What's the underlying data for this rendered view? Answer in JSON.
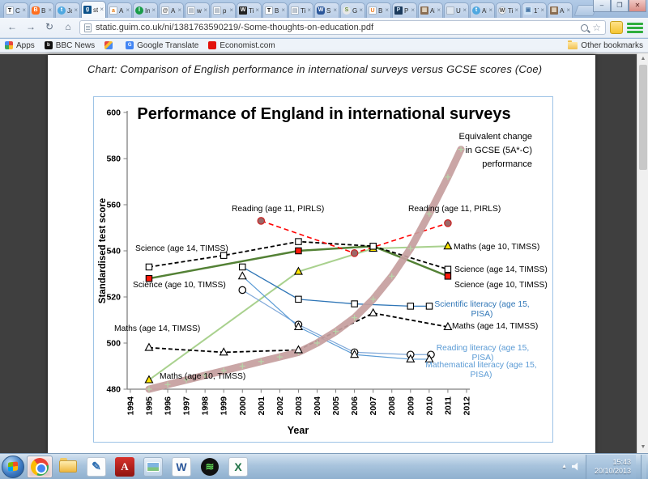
{
  "browser": {
    "tabs": [
      {
        "label": "C",
        "fav": {
          "glyph": "T",
          "bg": "#ffffff",
          "fg": "#111111",
          "shape": "square",
          "border": true
        }
      },
      {
        "label": "B",
        "fav": {
          "glyph": "B",
          "bg": "#ff6f1f",
          "fg": "#ffffff",
          "shape": "rounded"
        }
      },
      {
        "label": "Ja",
        "fav": {
          "glyph": "t",
          "bg": "#4fa8e0",
          "fg": "#ffffff",
          "shape": "circle"
        }
      },
      {
        "label": "st",
        "active": true,
        "fav": {
          "glyph": "g",
          "bg": "#0a5189",
          "fg": "#ffffff",
          "shape": "square"
        }
      },
      {
        "label": "A",
        "fav": {
          "glyph": "a",
          "bg": "#ffffff",
          "fg": "#e47911",
          "shape": "square",
          "border": true
        }
      },
      {
        "label": "In",
        "fav": {
          "glyph": "I",
          "bg": "#1a9c48",
          "fg": "#ffffff",
          "shape": "circle"
        }
      },
      {
        "label": "A",
        "fav": {
          "glyph": "@",
          "bg": "#ffffff",
          "fg": "#555555",
          "shape": "square",
          "border": true
        }
      },
      {
        "label": "w",
        "fav": {
          "glyph": "▤",
          "bg": "#ffffff",
          "fg": "#9aa7b5",
          "shape": "square",
          "border": true
        }
      },
      {
        "label": "p",
        "fav": {
          "glyph": "▤",
          "bg": "#ffffff",
          "fg": "#9aa7b5",
          "shape": "square",
          "border": true
        }
      },
      {
        "label": "Ti",
        "fav": {
          "glyph": "W",
          "bg": "#222222",
          "fg": "#ffffff",
          "shape": "square"
        }
      },
      {
        "label": "B",
        "fav": {
          "glyph": "T",
          "bg": "#ffffff",
          "fg": "#111111",
          "shape": "square",
          "border": true
        }
      },
      {
        "label": "Ti",
        "fav": {
          "glyph": "▤",
          "bg": "#ffffff",
          "fg": "#9aa7b5",
          "shape": "square",
          "border": true
        }
      },
      {
        "label": "S",
        "fav": {
          "glyph": "W",
          "bg": "#2b579a",
          "fg": "#ffffff",
          "shape": "rounded"
        }
      },
      {
        "label": "G",
        "fav": {
          "glyph": "S",
          "bg": "#e8e8e8",
          "fg": "#6a8f3f",
          "shape": "circle"
        }
      },
      {
        "label": "B",
        "fav": {
          "glyph": "U",
          "bg": "#ffffff",
          "fg": "#ef7d22",
          "shape": "square",
          "border": true
        }
      },
      {
        "label": "P",
        "fav": {
          "glyph": "P",
          "bg": "#1b3a5c",
          "fg": "#cfe0f0",
          "shape": "square"
        }
      },
      {
        "label": "Al",
        "fav": {
          "glyph": "▦",
          "bg": "#8a6d52",
          "fg": "#e8dcc8",
          "shape": "square"
        }
      },
      {
        "label": "U",
        "fav": {
          "glyph": "",
          "bg": "#dfe7f0",
          "fg": "#888888",
          "shape": "square",
          "border": true
        }
      },
      {
        "label": "Al",
        "fav": {
          "glyph": "t",
          "bg": "#4fa8e0",
          "fg": "#ffffff",
          "shape": "circle"
        }
      },
      {
        "label": "Ti",
        "fav": {
          "glyph": "W",
          "bg": "#f4f4f4",
          "fg": "#464646",
          "shape": "circle",
          "border": true
        }
      },
      {
        "label": "17",
        "fav": {
          "glyph": "▣",
          "bg": "#cfe3f5",
          "fg": "#4a78a8",
          "shape": "square"
        }
      },
      {
        "label": "Al",
        "fav": {
          "glyph": "▦",
          "bg": "#8a6d52",
          "fg": "#e8dcc8",
          "shape": "square"
        }
      }
    ],
    "url": "static.guim.co.uk/ni/1381763590219/-Some-thoughts-on-education.pdf",
    "window_controls": {
      "minimize": "–",
      "restore": "❐",
      "close": "✕"
    },
    "bookmarks": {
      "items": [
        {
          "label": "Apps"
        },
        {
          "label": "BBC News"
        },
        {
          "label": ""
        },
        {
          "label": "Google Translate"
        },
        {
          "label": "Economist.com"
        }
      ],
      "other": "Other bookmarks"
    }
  },
  "page": {
    "caption": "Chart: Comparison of English performance in international surveys versus GCSE scores (Coe)"
  },
  "chart_data": {
    "type": "line",
    "title": "Performance of England in international surveys",
    "xlabel": "Year",
    "ylabel": "Standardised test score",
    "xlim": [
      1994,
      2012
    ],
    "ylim": [
      480,
      600
    ],
    "yticks": [
      480,
      500,
      520,
      540,
      560,
      580,
      600
    ],
    "xticks": [
      1994,
      1995,
      1996,
      1997,
      1998,
      1999,
      2000,
      2001,
      2002,
      2003,
      2004,
      2005,
      2006,
      2007,
      2008,
      2009,
      2010,
      2011,
      2012
    ],
    "grid": false,
    "series": [
      {
        "name": "Equivalent change in GCSE (5A*-C) performance",
        "style": "band",
        "color": "#c69e9e",
        "width": 9,
        "marker": "plus",
        "marker_color": "#b7d7a9",
        "points": [
          [
            1995,
            480
          ],
          [
            1996,
            482
          ],
          [
            1997,
            484
          ],
          [
            1998,
            486
          ],
          [
            1999,
            488
          ],
          [
            2000,
            490
          ],
          [
            2001,
            492
          ],
          [
            2002,
            494
          ],
          [
            2003,
            496
          ],
          [
            2004,
            500
          ],
          [
            2005,
            505
          ],
          [
            2006,
            511
          ],
          [
            2007,
            519
          ],
          [
            2008,
            529
          ],
          [
            2009,
            541
          ],
          [
            2010,
            556
          ],
          [
            2011,
            572
          ],
          [
            2011.7,
            584
          ]
        ]
      },
      {
        "name": "Maths (age 10, TIMSS)",
        "color": "#a9d18e",
        "width": 2,
        "marker": "triangle",
        "marker_fill": "#ffe600",
        "points": [
          [
            1995,
            484
          ],
          [
            2003,
            531
          ],
          [
            2007,
            541
          ],
          [
            2011,
            542
          ]
        ]
      },
      {
        "name": "Science (age 10, TIMSS)",
        "color": "#538135",
        "width": 2.5,
        "marker": "square",
        "marker_fill": "#ff1a0a",
        "points": [
          [
            1995,
            528
          ],
          [
            2003,
            540
          ],
          [
            2007,
            542
          ],
          [
            2011,
            529
          ]
        ]
      },
      {
        "name": "Science (age 14, TIMSS)",
        "color": "#000000",
        "dash": "5,3",
        "width": 1.8,
        "marker": "square",
        "marker_fill": "#ffffff",
        "points": [
          [
            1995,
            533
          ],
          [
            1999,
            538
          ],
          [
            2003,
            544
          ],
          [
            2007,
            542
          ],
          [
            2011,
            532
          ]
        ]
      },
      {
        "name": "Maths (age 14, TIMSS)",
        "color": "#000000",
        "dash": "5,3",
        "width": 1.8,
        "marker": "triangle",
        "marker_fill": "#ffffff",
        "points": [
          [
            1995,
            498
          ],
          [
            1999,
            496
          ],
          [
            2003,
            497
          ],
          [
            2007,
            513
          ],
          [
            2011,
            507
          ]
        ]
      },
      {
        "name": "Reading (age 11, PIRLS)",
        "color": "#ff0000",
        "dash": "6,4",
        "width": 1.6,
        "marker": "circle",
        "marker_fill": "#9b6868",
        "marker_stroke": "#cc2222",
        "points": [
          [
            2001,
            553
          ],
          [
            2006,
            539
          ],
          [
            2011,
            552
          ]
        ]
      },
      {
        "name": "Scientific literacy (age 15, PISA)",
        "color": "#2e75b6",
        "width": 1.3,
        "marker": "square",
        "marker_fill": "#ffffff",
        "tail_x": 530,
        "points": [
          [
            2000,
            533
          ],
          [
            2003,
            519
          ],
          [
            2006,
            517
          ],
          [
            2009,
            516
          ]
        ]
      },
      {
        "name": "Reading literacy (age 15, PISA)",
        "color": "#7fa8d9",
        "width": 1.2,
        "marker": "circle",
        "marker_fill": "#ffffff",
        "tail_x": 532,
        "points": [
          [
            2000,
            523
          ],
          [
            2003,
            508
          ],
          [
            2006,
            496
          ],
          [
            2009,
            495
          ]
        ]
      },
      {
        "name": "Mathematical literacy (age 15, PISA)",
        "color": "#5b9bd5",
        "width": 1.2,
        "marker": "triangle",
        "marker_fill": "#ffffff",
        "tail_x": 530,
        "points": [
          [
            2000,
            529
          ],
          [
            2003,
            507
          ],
          [
            2006,
            495
          ],
          [
            2009,
            493
          ]
        ]
      }
    ],
    "annotations": [
      {
        "text": [
          "Reading  (age 11, PIRLS)"
        ],
        "x": 286,
        "y": 259,
        "anchor": "start",
        "color": "#000000"
      },
      {
        "text": [
          "Reading  (age 11, PIRLS)"
        ],
        "x": 504,
        "y": 259,
        "anchor": "start",
        "color": "#000000"
      },
      {
        "text": [
          "Equivalent change",
          "in GCSE (5A*-C)",
          "performance"
        ],
        "x": 657,
        "y": 170,
        "anchor": "end",
        "color": "#000000",
        "lh": 17,
        "size": 11
      },
      {
        "text": [
          "Maths (age 10, TIMSS)"
        ],
        "x": 560,
        "y": 306,
        "anchor": "start",
        "color": "#000000"
      },
      {
        "text": [
          "Science (age 14, TIMSS)"
        ],
        "x": 561,
        "y": 334,
        "anchor": "start",
        "color": "#000000"
      },
      {
        "text": [
          "Science (age 10, TIMSS)"
        ],
        "x": 561,
        "y": 353,
        "anchor": "start",
        "color": "#000000"
      },
      {
        "text": [
          "Scientific literacy (age 15,",
          "PISA)"
        ],
        "x": 595,
        "y": 377,
        "anchor": "middle",
        "color": "#2e75b6",
        "lh": 12
      },
      {
        "text": [
          "Maths (age 14, TIMSS)"
        ],
        "x": 558,
        "y": 404,
        "anchor": "start",
        "color": "#000000"
      },
      {
        "text": [
          "Reading literacy (age 15,",
          "PISA)"
        ],
        "x": 596,
        "y": 431,
        "anchor": "middle",
        "color": "#5b9bd5",
        "lh": 12
      },
      {
        "text": [
          "Mathematical literacy (age 15,",
          "PISA)"
        ],
        "x": 594,
        "y": 452,
        "anchor": "middle",
        "color": "#5b9bd5",
        "lh": 12
      },
      {
        "text": [
          "Science (age 14, TIMSS)"
        ],
        "x": 167,
        "y": 308,
        "anchor": "start",
        "color": "#000000"
      },
      {
        "text": [
          "Science (age 10, TIMSS)"
        ],
        "x": 164,
        "y": 353,
        "anchor": "start",
        "color": "#000000"
      },
      {
        "text": [
          "Maths (age 14, TIMSS)"
        ],
        "x": 141,
        "y": 407,
        "anchor": "start",
        "color": "#000000"
      },
      {
        "text": [
          "Maths (age 10, TIMSS)"
        ],
        "x": 197,
        "y": 466,
        "anchor": "start",
        "color": "#000000"
      }
    ]
  },
  "taskbar": {
    "icons": [
      {
        "name": "chrome",
        "active": true
      },
      {
        "name": "explorer"
      },
      {
        "name": "journal"
      },
      {
        "name": "adobe-reader"
      },
      {
        "name": "photo-viewer"
      },
      {
        "name": "word"
      },
      {
        "name": "spotify"
      },
      {
        "name": "excel"
      }
    ],
    "tray": {
      "time": "15:43",
      "date": "20/10/2013"
    }
  }
}
